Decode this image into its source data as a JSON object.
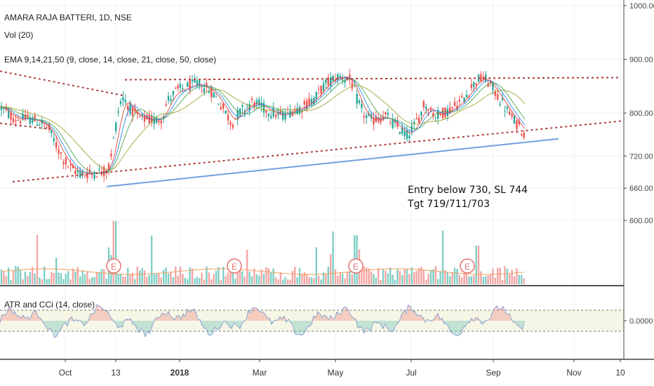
{
  "legend": {
    "symbol": "AMARA RAJA BATTERI, 1D, NSE",
    "vol": "Vol (20)",
    "ema": "EMA 9,14,21,50 (9, close, 14, close, 21, close, 50, close)",
    "osc": "ATR and CCi (14, close)"
  },
  "annotation": {
    "line1": "Entry below 730, SL 744",
    "line2": "Tgt 719/711/703"
  },
  "event_marker": "E",
  "colors": {
    "up": "#26a69a",
    "down": "#ef5350",
    "ema9": "#e53935",
    "ema14": "#1e88e5",
    "ema21": "#43a047",
    "ema50": "#9e9d24",
    "trend_dotted": "#b03a3a",
    "trend_blue": "#6fa0e0",
    "vol_ma": "#f0a060"
  },
  "chart_data": {
    "type": "candlestick",
    "title": "AMARA RAJA BATTERI, 1D, NSE",
    "price_axis": {
      "ticks": [
        "1000.00",
        "900.00",
        "800.00",
        "720.00",
        "660.00",
        "600.00"
      ],
      "range": [
        540,
        1000
      ]
    },
    "osc_axis": {
      "ticks": [
        "0.0000"
      ]
    },
    "time_axis": {
      "ticks": [
        "Oct",
        "13",
        "2018",
        "Mar",
        "May",
        "Jul",
        "Sep",
        "Nov",
        "10"
      ]
    },
    "price_path": [
      [
        0,
        812
      ],
      [
        10,
        800
      ],
      [
        20,
        790
      ],
      [
        30,
        788
      ],
      [
        40,
        790
      ],
      [
        50,
        786
      ],
      [
        60,
        780
      ],
      [
        70,
        770
      ],
      [
        80,
        740
      ],
      [
        90,
        715
      ],
      [
        100,
        698
      ],
      [
        110,
        690
      ],
      [
        120,
        686
      ],
      [
        130,
        688
      ],
      [
        140,
        690
      ],
      [
        150,
        692
      ],
      [
        155,
        700
      ],
      [
        160,
        735
      ],
      [
        165,
        775
      ],
      [
        170,
        815
      ],
      [
        175,
        828
      ],
      [
        180,
        820
      ],
      [
        190,
        800
      ],
      [
        200,
        790
      ],
      [
        210,
        788
      ],
      [
        220,
        786
      ],
      [
        230,
        790
      ],
      [
        240,
        825
      ],
      [
        250,
        840
      ],
      [
        260,
        845
      ],
      [
        270,
        850
      ],
      [
        280,
        855
      ],
      [
        290,
        848
      ],
      [
        300,
        842
      ],
      [
        310,
        825
      ],
      [
        320,
        805
      ],
      [
        330,
        780
      ],
      [
        340,
        800
      ],
      [
        350,
        810
      ],
      [
        360,
        820
      ],
      [
        370,
        815
      ],
      [
        380,
        805
      ],
      [
        390,
        800
      ],
      [
        400,
        795
      ],
      [
        410,
        800
      ],
      [
        420,
        808
      ],
      [
        430,
        810
      ],
      [
        440,
        820
      ],
      [
        450,
        830
      ],
      [
        460,
        848
      ],
      [
        470,
        860
      ],
      [
        480,
        868
      ],
      [
        490,
        866
      ],
      [
        500,
        860
      ],
      [
        510,
        820
      ],
      [
        520,
        795
      ],
      [
        530,
        786
      ],
      [
        540,
        790
      ],
      [
        550,
        794
      ],
      [
        560,
        780
      ],
      [
        570,
        770
      ],
      [
        580,
        758
      ],
      [
        590,
        775
      ],
      [
        600,
        800
      ],
      [
        605,
        820
      ],
      [
        610,
        808
      ],
      [
        620,
        795
      ],
      [
        630,
        800
      ],
      [
        640,
        805
      ],
      [
        650,
        815
      ],
      [
        660,
        825
      ],
      [
        670,
        845
      ],
      [
        680,
        862
      ],
      [
        690,
        865
      ],
      [
        700,
        850
      ],
      [
        710,
        830
      ],
      [
        720,
        810
      ],
      [
        730,
        790
      ],
      [
        740,
        775
      ],
      [
        748,
        760
      ]
    ],
    "ema_series": [
      {
        "name": "EMA 9",
        "color": "#e53935",
        "lag": 3
      },
      {
        "name": "EMA 14",
        "color": "#1e88e5",
        "lag": 5
      },
      {
        "name": "EMA 21",
        "color": "#43a047",
        "lag": 8
      },
      {
        "name": "EMA 50",
        "color": "#9e9d24",
        "lag": 16
      }
    ],
    "trendlines": [
      {
        "style": "dotted",
        "color": "#b03a3a",
        "from": [
          0,
          878
        ],
        "to": [
          178,
          832
        ]
      },
      {
        "style": "dotted",
        "color": "#b03a3a",
        "from": [
          0,
          781
        ],
        "to": [
          72,
          770
        ]
      },
      {
        "style": "dotted",
        "color": "#b03a3a",
        "from": [
          178,
          862
        ],
        "to": [
          885,
          866
        ]
      },
      {
        "style": "dotted",
        "color": "#b03a3a",
        "from": [
          18,
          672
        ],
        "to": [
          885,
          785
        ]
      },
      {
        "style": "solid",
        "color": "#6fa0e0",
        "from": [
          152,
          663
        ],
        "to": [
          796,
          752
        ]
      }
    ],
    "event_x": [
      162,
      334,
      507,
      666
    ],
    "oscillator_band": [
      0.5,
      -0.45
    ],
    "oscillator_ticks_value": 0
  }
}
